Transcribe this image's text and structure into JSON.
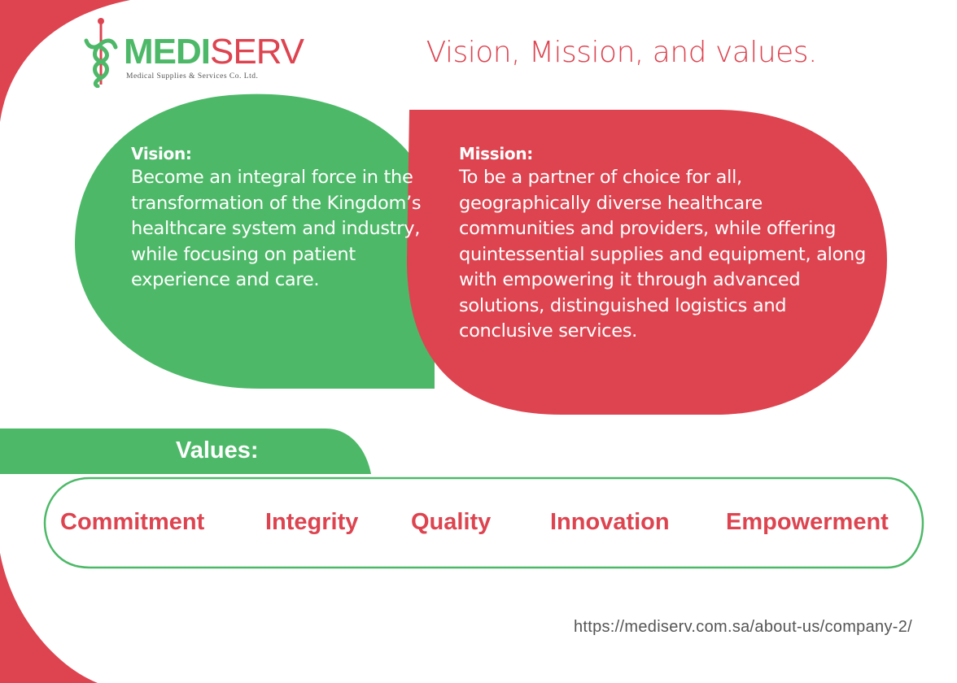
{
  "brand": {
    "name_part1": "MEDI",
    "name_part2": "SERV",
    "tagline": "Medical  Supplies  & Services  Co.  Ltd.",
    "icon": "caduceus-icon"
  },
  "page": {
    "title": "Vision, Mission, and values."
  },
  "vision": {
    "heading": "Vision:",
    "body": "Become an integral force in the transformation of the Kingdom’s healthcare system and industry, while focusing on patient experience and care."
  },
  "mission": {
    "heading": "Mission:",
    "body": "To be a partner of choice for all, geographically diverse healthcare communities and providers, while offering quintessential supplies and equipment, along with empowering it through advanced solutions, distinguished logistics and conclusive services."
  },
  "values": {
    "heading": "Values:",
    "items": [
      "Commitment",
      "Integrity",
      "Quality",
      "Innovation",
      "Empowerment"
    ]
  },
  "source_url": "https://mediserv.com.sa/about-us/company-2/",
  "colors": {
    "green": "#4db968",
    "red": "#dd4450",
    "white": "#ffffff"
  }
}
